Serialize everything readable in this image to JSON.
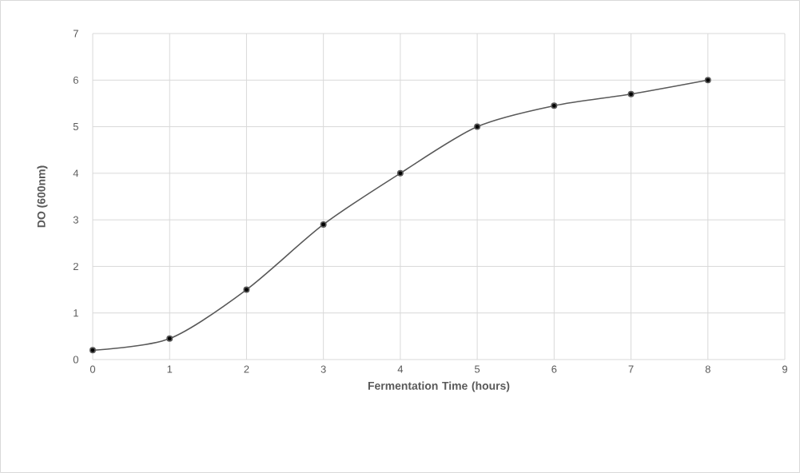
{
  "chart_data": {
    "type": "line",
    "xlabel": "Fermentation Time (hours)",
    "ylabel": "DO (600nm)",
    "x": [
      0,
      1,
      2,
      3,
      4,
      5,
      6,
      7,
      8
    ],
    "series": [
      {
        "color": "#595959",
        "values": [
          0.2,
          0.45,
          1.5,
          2.9,
          4.0,
          5.0,
          5.45,
          5.7,
          6.0
        ]
      }
    ],
    "xlim": [
      0,
      9
    ],
    "xticks": [
      0,
      1,
      2,
      3,
      4,
      5,
      6,
      7,
      8,
      9
    ],
    "ylim": [
      0,
      7
    ],
    "yticks": [
      0,
      1,
      2,
      3,
      4,
      5,
      6,
      7
    ],
    "grid": true,
    "marker": "circle",
    "line_style": "solid"
  }
}
